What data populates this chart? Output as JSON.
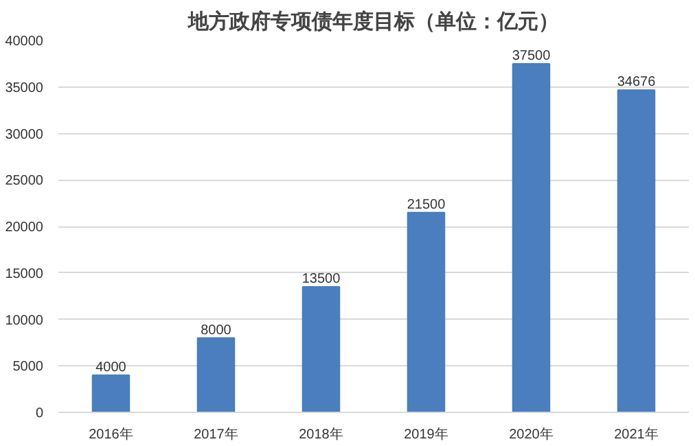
{
  "chart_data": {
    "type": "bar",
    "title": "地方政府专项债年度目标（单位：亿元）",
    "categories": [
      "2016年",
      "2017年",
      "2018年",
      "2019年",
      "2020年",
      "2021年"
    ],
    "values": [
      4000,
      8000,
      13500,
      21500,
      37500,
      34676
    ],
    "color": "#4a7ebf",
    "ylim": [
      0,
      40000
    ],
    "yticks": [
      0,
      5000,
      10000,
      15000,
      20000,
      25000,
      30000,
      35000,
      40000
    ],
    "grid": "y",
    "data_labels": true
  }
}
